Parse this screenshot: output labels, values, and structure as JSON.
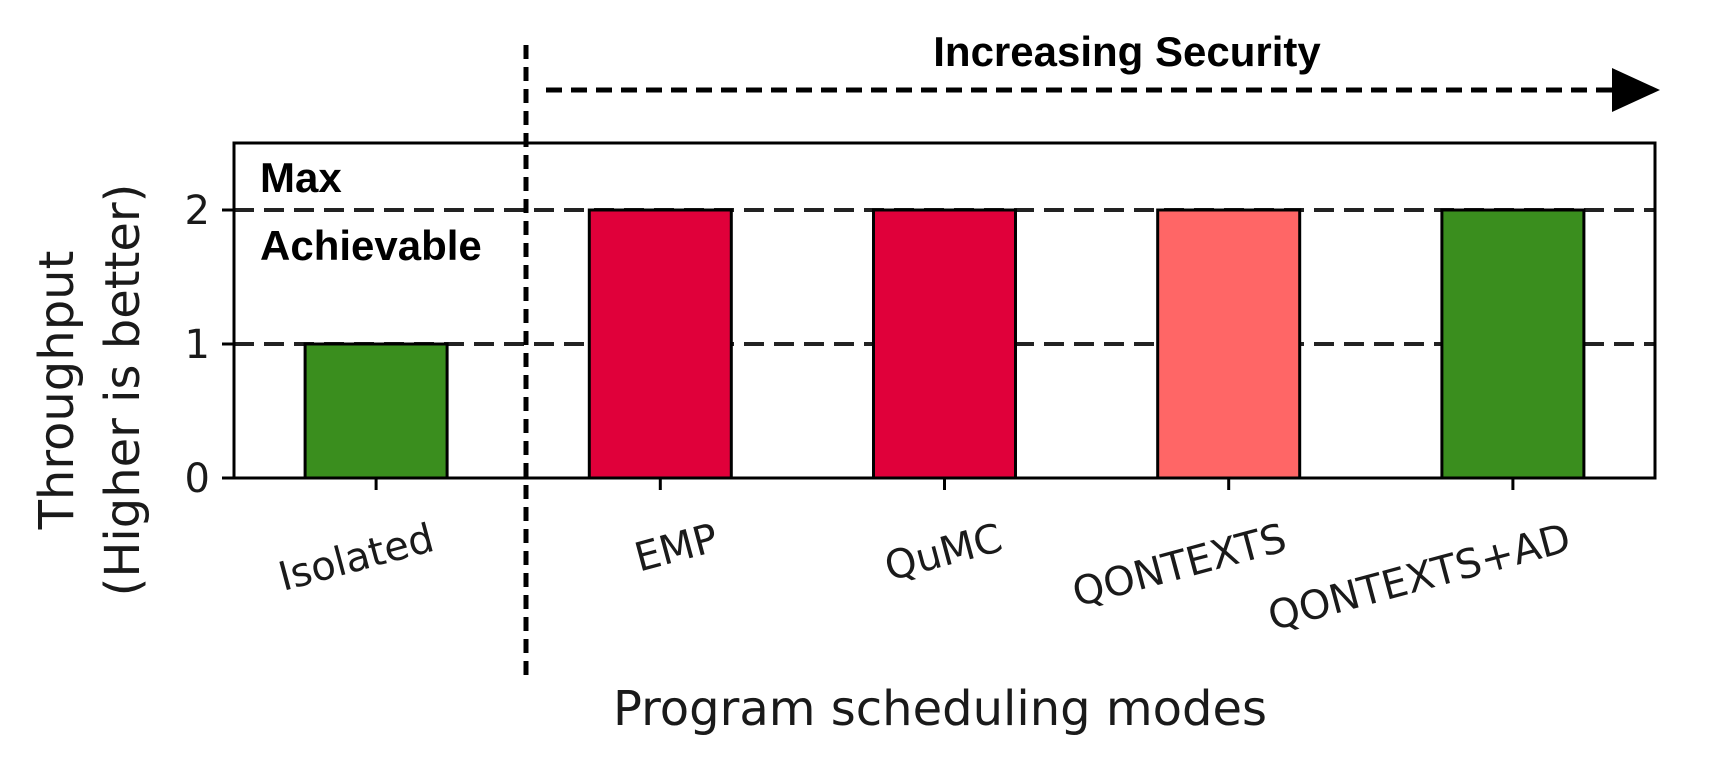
{
  "chart_data": {
    "type": "bar",
    "categories": [
      "Isolated",
      "EMP",
      "QuMC",
      "QONTEXTS",
      "QONTEXTS+AD"
    ],
    "values": [
      1,
      2,
      2,
      2,
      2
    ],
    "bar_colors": [
      "#3a8e1e",
      "#e0003a",
      "#e0003a",
      "#ff6666",
      "#3a8e1e"
    ],
    "xlabel": "Program scheduling modes",
    "ylabel_line1": "Throughput",
    "ylabel_line2": "(Higher is better)",
    "ylim": [
      0,
      2.5
    ],
    "yticks": [
      0,
      1,
      2
    ],
    "reference_lines": [
      1,
      2
    ],
    "annotations": {
      "security_arrow": "Increasing Security",
      "max_line1": "Max",
      "max_line2": "Achievable"
    },
    "grid": false
  }
}
